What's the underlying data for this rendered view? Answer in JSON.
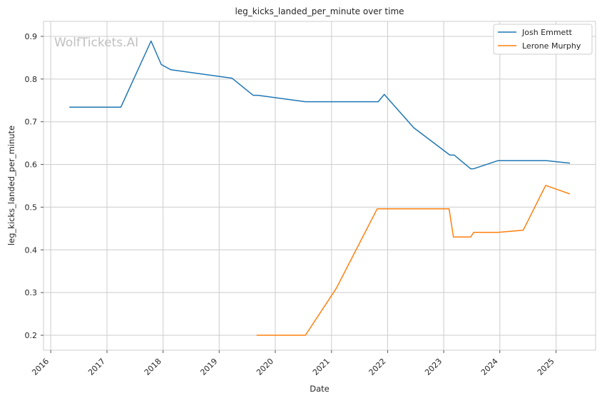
{
  "chart_data": {
    "type": "line",
    "title": "leg_kicks_landed_per_minute over time",
    "xlabel": "Date",
    "ylabel": "leg_kicks_landed_per_minute",
    "watermark": "WolfTickets.AI",
    "xlim": [
      "2015-11-15",
      "2025-09-15"
    ],
    "ylim": [
      0.165,
      0.935
    ],
    "x_ticks": [
      "2016-01-01",
      "2017-01-01",
      "2018-01-01",
      "2019-01-01",
      "2020-01-01",
      "2021-01-01",
      "2022-01-01",
      "2023-01-01",
      "2024-01-01",
      "2025-01-01"
    ],
    "x_tick_labels": [
      "2016",
      "2017",
      "2018",
      "2019",
      "2020",
      "2021",
      "2022",
      "2023",
      "2024",
      "2025"
    ],
    "y_ticks": [
      0.2,
      0.3,
      0.4,
      0.5,
      0.6,
      0.7,
      0.8,
      0.9
    ],
    "y_tick_labels": [
      "0.2",
      "0.3",
      "0.4",
      "0.5",
      "0.6",
      "0.7",
      "0.8",
      "0.9"
    ],
    "grid": true,
    "legend_position": "top-right",
    "series": [
      {
        "name": "Josh Emmett",
        "color": "#1f77b4",
        "points": [
          [
            "2016-05-01",
            0.734
          ],
          [
            "2017-04-01",
            0.734
          ],
          [
            "2017-10-15",
            0.889
          ],
          [
            "2017-12-20",
            0.834
          ],
          [
            "2018-02-20",
            0.822
          ],
          [
            "2019-03-25",
            0.802
          ],
          [
            "2019-08-10",
            0.762
          ],
          [
            "2019-09-10",
            0.762
          ],
          [
            "2020-07-15",
            0.747
          ],
          [
            "2021-11-01",
            0.747
          ],
          [
            "2021-12-10",
            0.764
          ],
          [
            "2022-06-20",
            0.686
          ],
          [
            "2023-02-10",
            0.622
          ],
          [
            "2023-03-10",
            0.622
          ],
          [
            "2023-06-25",
            0.59
          ],
          [
            "2023-07-15",
            0.59
          ],
          [
            "2023-12-20",
            0.609
          ],
          [
            "2024-11-01",
            0.609
          ],
          [
            "2025-04-01",
            0.603
          ]
        ]
      },
      {
        "name": "Lerone Murphy",
        "color": "#ff7f0e",
        "points": [
          [
            "2019-09-01",
            0.2
          ],
          [
            "2020-07-15",
            0.2
          ],
          [
            "2021-02-01",
            0.31
          ],
          [
            "2021-10-25",
            0.496
          ],
          [
            "2023-02-05",
            0.496
          ],
          [
            "2023-03-05",
            0.43
          ],
          [
            "2023-06-25",
            0.43
          ],
          [
            "2023-07-15",
            0.441
          ],
          [
            "2023-12-20",
            0.441
          ],
          [
            "2024-06-01",
            0.446
          ],
          [
            "2024-10-25",
            0.551
          ],
          [
            "2025-04-01",
            0.531
          ]
        ]
      }
    ]
  }
}
